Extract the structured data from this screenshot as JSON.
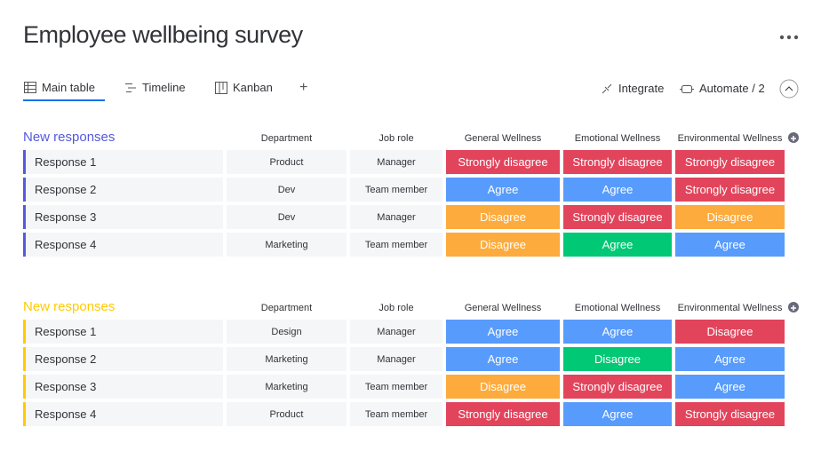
{
  "header": {
    "title": "Employee wellbeing survey"
  },
  "tabs": [
    "Main table",
    "Timeline",
    "Kanban"
  ],
  "actions": [
    "Integrate",
    "Automate / 2"
  ],
  "groups": [
    {
      "name": "New responses",
      "color": "#5559df",
      "columns": [
        "Department",
        "Job role",
        "General Wellness",
        "Emotional Wellness",
        "Environmental Wellness"
      ],
      "rows": [
        {
          "name": "Response 1",
          "department": "Product",
          "role": "Manager",
          "statuses": [
            {
              "text": "Strongly disagree",
              "color": "#e2445c"
            },
            {
              "text": "Strongly disagree",
              "color": "#e2445c"
            },
            {
              "text": "Strongly disagree",
              "color": "#e2445c"
            }
          ]
        },
        {
          "name": "Response 2",
          "department": "Dev",
          "role": "Team member",
          "statuses": [
            {
              "text": "Agree",
              "color": "#579bfc"
            },
            {
              "text": "Agree",
              "color": "#579bfc"
            },
            {
              "text": "Strongly disagree",
              "color": "#e2445c"
            }
          ]
        },
        {
          "name": "Response 3",
          "department": "Dev",
          "role": "Manager",
          "statuses": [
            {
              "text": "Disagree",
              "color": "#fdab3d"
            },
            {
              "text": "Strongly disagree",
              "color": "#e2445c"
            },
            {
              "text": "Disagree",
              "color": "#fdab3d"
            }
          ]
        },
        {
          "name": "Response 4",
          "department": "Marketing",
          "role": "Team member",
          "statuses": [
            {
              "text": "Disagree",
              "color": "#fdab3d"
            },
            {
              "text": "Agree",
              "color": "#00c875"
            },
            {
              "text": "Agree",
              "color": "#579bfc"
            }
          ]
        }
      ]
    },
    {
      "name": "New responses",
      "color": "#ffcb00",
      "columns": [
        "Department",
        "Job role",
        "General Wellness",
        "Emotional Wellness",
        "Environmental Wellness"
      ],
      "rows": [
        {
          "name": "Response 1",
          "department": "Design",
          "role": "Manager",
          "statuses": [
            {
              "text": "Agree",
              "color": "#579bfc"
            },
            {
              "text": "Agree",
              "color": "#579bfc"
            },
            {
              "text": "Disagree",
              "color": "#e2445c"
            }
          ]
        },
        {
          "name": "Response 2",
          "department": "Marketing",
          "role": "Manager",
          "statuses": [
            {
              "text": "Agree",
              "color": "#579bfc"
            },
            {
              "text": "Disagree",
              "color": "#00c875"
            },
            {
              "text": "Agree",
              "color": "#579bfc"
            }
          ]
        },
        {
          "name": "Response 3",
          "department": "Marketing",
          "role": "Team member",
          "statuses": [
            {
              "text": "Disagree",
              "color": "#fdab3d"
            },
            {
              "text": "Strongly disagree",
              "color": "#e2445c"
            },
            {
              "text": "Agree",
              "color": "#579bfc"
            }
          ]
        },
        {
          "name": "Response 4",
          "department": "Product",
          "role": "Team member",
          "statuses": [
            {
              "text": "Strongly disagree",
              "color": "#e2445c"
            },
            {
              "text": "Agree",
              "color": "#579bfc"
            },
            {
              "text": "Strongly disagree",
              "color": "#e2445c"
            }
          ]
        }
      ]
    }
  ]
}
